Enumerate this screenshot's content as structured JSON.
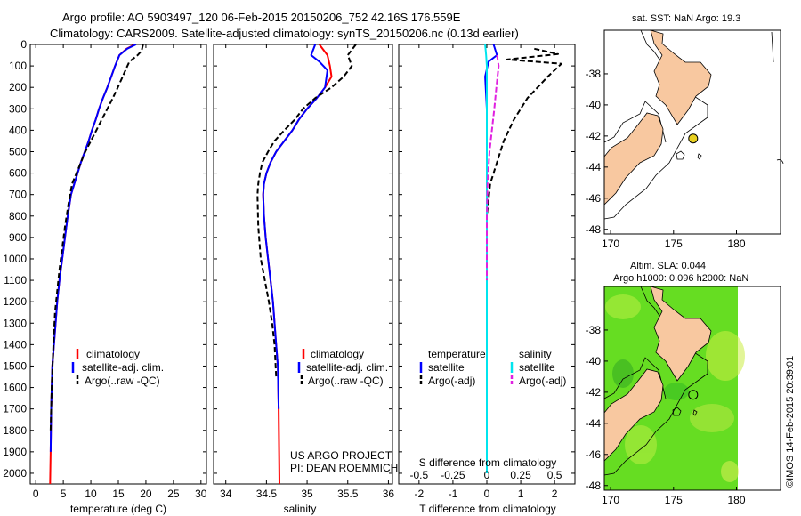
{
  "header": {
    "title_line1": "Argo profile: AO 5903497_120 06-Feb-2015 20150206_752 42.16S 176.559E",
    "title_line2": "Climatology: CARS2009. Satellite-adjusted climatology: synTS_20150206.nc (0.13d earlier)"
  },
  "watermark": "©IMOS 14-Feb-2015 20:39:01",
  "colors": {
    "climatology": "#ff0000",
    "satellite": "#0000ff",
    "argo": "#000000",
    "salinity_satellite": "#00e5ee",
    "salinity_argo": "#e020e0",
    "land": "#f8c8a0",
    "sla_field": "#66dd22"
  },
  "chart_data": [
    {
      "id": "temperature",
      "type": "line",
      "xlabel": "temperature (deg C)",
      "ylabel": "",
      "xlim": [
        -1,
        31
      ],
      "xticks": [
        0,
        5,
        10,
        15,
        20,
        25,
        30
      ],
      "ylim": [
        2050,
        0
      ],
      "yticks": [
        0,
        100,
        200,
        300,
        400,
        500,
        600,
        700,
        800,
        900,
        1000,
        1100,
        1200,
        1300,
        1400,
        1500,
        1600,
        1700,
        1800,
        1900,
        2000
      ],
      "legend": [
        "climatology",
        "satellite-adj. clim.",
        "Argo(..raw -QC)"
      ],
      "series": [
        {
          "name": "climatology",
          "style": "solid",
          "color": "#ff0000",
          "x": [
            18.0,
            16.5,
            15.2,
            14.4,
            13.7,
            13.0,
            12.2,
            11.5,
            10.9,
            10.2,
            9.6,
            8.9,
            8.2,
            7.6,
            7.0,
            6.4,
            5.8,
            5.3,
            4.8,
            4.3,
            3.9,
            3.6,
            3.3,
            3.0,
            2.8,
            2.7,
            2.6
          ],
          "y": [
            0,
            20,
            50,
            100,
            150,
            200,
            250,
            300,
            350,
            400,
            450,
            500,
            550,
            600,
            650,
            700,
            800,
            900,
            1000,
            1100,
            1200,
            1300,
            1400,
            1500,
            1700,
            1900,
            2050
          ]
        },
        {
          "name": "satellite-adj. clim.",
          "style": "solid",
          "color": "#0000ff",
          "x": [
            18.2,
            16.6,
            15.2,
            14.4,
            13.7,
            13.0,
            12.2,
            11.5,
            10.9,
            10.2,
            9.6,
            8.9,
            8.2,
            7.6,
            7.0,
            6.4,
            5.8,
            5.3,
            4.8,
            4.3,
            3.9,
            3.6,
            3.3,
            3.0,
            2.8,
            2.7
          ],
          "y": [
            0,
            20,
            50,
            100,
            150,
            200,
            250,
            300,
            350,
            400,
            450,
            500,
            550,
            600,
            650,
            700,
            800,
            900,
            1000,
            1100,
            1200,
            1300,
            1400,
            1500,
            1700,
            1900
          ]
        },
        {
          "name": "Argo(..raw -QC)",
          "style": "dash",
          "color": "#000000",
          "x": [
            19.5,
            19.2,
            18.5,
            17.0,
            16.3,
            15.6,
            14.9,
            14.0,
            13.0,
            12.0,
            11.0,
            10.0,
            9.0,
            8.2,
            7.4,
            6.6,
            5.9,
            5.3,
            4.8,
            4.3,
            3.9,
            3.5,
            3.2,
            2.9,
            2.7
          ],
          "y": [
            0,
            30,
            50,
            80,
            120,
            160,
            200,
            250,
            300,
            350,
            400,
            450,
            500,
            550,
            600,
            650,
            750,
            850,
            950,
            1050,
            1150,
            1250,
            1400,
            1600,
            1800
          ]
        }
      ]
    },
    {
      "id": "salinity",
      "type": "line",
      "xlabel": "salinity",
      "xlim": [
        33.85,
        36.05
      ],
      "xticks": [
        34,
        34.5,
        35,
        35.5,
        36
      ],
      "ylim": [
        2050,
        0
      ],
      "legend": [
        "climatology",
        "satellite-adj. clim.",
        "Argo(..raw -QC)"
      ],
      "credit": [
        "US ARGO PROJECT",
        "PI: DEAN ROEMMICH"
      ],
      "series": [
        {
          "name": "climatology",
          "style": "solid",
          "color": "#ff0000",
          "x": [
            35.15,
            35.25,
            35.28,
            35.3,
            35.22,
            35.12,
            35.0,
            34.9,
            34.82,
            34.72,
            34.62,
            34.55,
            34.5,
            34.47,
            34.46,
            34.47,
            34.49,
            34.52,
            34.55,
            34.58,
            34.6,
            34.62,
            34.64,
            34.65,
            34.66
          ],
          "y": [
            0,
            50,
            100,
            150,
            200,
            250,
            300,
            350,
            400,
            450,
            500,
            550,
            600,
            650,
            700,
            800,
            900,
            1000,
            1100,
            1200,
            1300,
            1400,
            1500,
            1700,
            2050
          ]
        },
        {
          "name": "satellite-adj. clim.",
          "style": "solid",
          "color": "#0000ff",
          "x": [
            35.1,
            35.05,
            35.15,
            35.25,
            35.22,
            35.12,
            35.0,
            34.9,
            34.82,
            34.72,
            34.62,
            34.55,
            34.5,
            34.47,
            34.46,
            34.47,
            34.49,
            34.52,
            34.55,
            34.58,
            34.6,
            34.62,
            34.64,
            34.65
          ],
          "y": [
            0,
            50,
            80,
            120,
            200,
            250,
            300,
            350,
            400,
            450,
            500,
            550,
            600,
            650,
            700,
            800,
            900,
            1000,
            1100,
            1200,
            1300,
            1400,
            1500,
            1700
          ]
        },
        {
          "name": "Argo(..raw -QC)",
          "style": "dash",
          "color": "#000000",
          "x": [
            35.6,
            35.5,
            35.55,
            35.45,
            35.3,
            35.1,
            34.95,
            34.85,
            34.72,
            34.6,
            34.52,
            34.45,
            34.42,
            34.4,
            34.39,
            34.4,
            34.43,
            34.48,
            34.53,
            34.57,
            34.6,
            34.62
          ],
          "y": [
            0,
            50,
            100,
            150,
            200,
            250,
            300,
            350,
            400,
            450,
            500,
            550,
            600,
            650,
            700,
            850,
            1000,
            1100,
            1200,
            1300,
            1400,
            1550
          ]
        }
      ]
    },
    {
      "id": "difference",
      "type": "line",
      "xlabel": "T difference from climatology",
      "xlabel_top": "S difference from climatology",
      "xlim": [
        -2.6,
        2.6
      ],
      "xticks": [
        -2,
        -1,
        0,
        1,
        2
      ],
      "xticks_s": [
        "-0.5",
        "-0.25",
        "0",
        "0.25",
        "0.5"
      ],
      "ylim": [
        2050,
        0
      ],
      "legend": {
        "temperature_title": "temperature",
        "salinity_title": "salinity",
        "temperature": [
          "satellite",
          "Argo(-adj)"
        ],
        "salinity": [
          "satellite",
          "Argo(-adj)"
        ]
      },
      "series": [
        {
          "name": "satellite",
          "group": "temperature",
          "style": "solid",
          "color": "#0000ff",
          "x": [
            0.2,
            0.3,
            0.05,
            -0.05,
            0.0,
            0.0,
            0.0,
            0.0,
            0.0,
            0.0
          ],
          "y": [
            0,
            50,
            80,
            150,
            300,
            500,
            800,
            1200,
            1600,
            2000
          ]
        },
        {
          "name": "Argo(-adj)",
          "group": "temperature",
          "style": "dash",
          "color": "#000000",
          "x": [
            1.4,
            2.1,
            0.6,
            2.2,
            1.8,
            1.2,
            0.8,
            0.5,
            0.3,
            0.1,
            0.0,
            0.0,
            0.0,
            0.0
          ],
          "y": [
            20,
            45,
            70,
            90,
            150,
            250,
            350,
            450,
            550,
            650,
            800,
            1100,
            1500,
            1900
          ]
        },
        {
          "name": "satellite",
          "group": "salinity",
          "style": "solid",
          "color": "#00e5ee",
          "x": [
            -0.05,
            -0.02,
            0.0,
            0.0,
            0.0,
            0.0,
            0.0,
            0.0,
            0.0
          ],
          "y": [
            0,
            50,
            100,
            300,
            500,
            800,
            1200,
            1600,
            2000
          ]
        },
        {
          "name": "Argo(-adj)",
          "group": "salinity",
          "style": "dash",
          "color": "#e020e0",
          "x": [
            0.3,
            0.35,
            0.28,
            0.22,
            0.15,
            0.08,
            0.02,
            0.0,
            0.0
          ],
          "y": [
            50,
            100,
            200,
            300,
            400,
            500,
            650,
            800,
            1100
          ]
        }
      ]
    },
    {
      "id": "sst-map",
      "type": "map",
      "title": "sat. SST: NaN Argo: 19.3",
      "xticks": [
        170,
        175,
        180
      ],
      "yticks": [
        -38,
        -40,
        -42,
        -44,
        -46,
        -48
      ],
      "xlim": [
        169.5,
        183.5
      ],
      "ylim": [
        -48.3,
        -35.2
      ],
      "float": {
        "lon": 176.559,
        "lat": -42.16
      }
    },
    {
      "id": "sla-map",
      "type": "map",
      "title_line1": "Altim. SLA: 0.044",
      "title_line2": "Argo h1000: 0.096 h2000: NaN",
      "xticks": [
        170,
        175,
        180
      ],
      "yticks": [
        -38,
        -40,
        -42,
        -44,
        -46,
        -48
      ],
      "xlim": [
        169.5,
        183.5
      ],
      "ylim": [
        -48.3,
        -35.2
      ],
      "float": {
        "lon": 176.559,
        "lat": -42.16
      }
    }
  ]
}
